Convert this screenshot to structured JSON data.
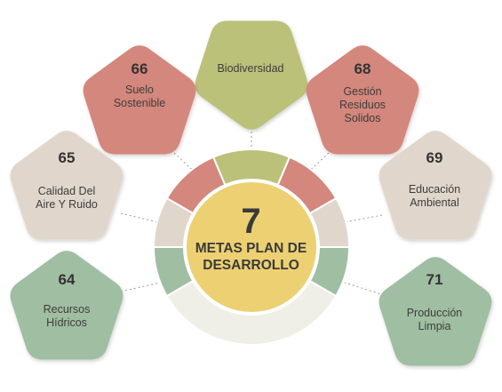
{
  "center": {
    "number": "7",
    "title": "METAS PLAN DE DESARROLLO"
  },
  "colors": {
    "green_light": "#bcc17a",
    "salmon": "#d4877c",
    "beige": "#e0d6cc",
    "sage": "#a0bea2",
    "center": "#ecd072",
    "ring_bottom": "#efefe7",
    "connector": "#9a9a9a"
  },
  "nodes": [
    {
      "id": "biodiversidad",
      "number": "",
      "label": "Biodiversidad",
      "color": "green_light"
    },
    {
      "id": "66",
      "number": "66",
      "label": "Suelo Sostenible",
      "color": "salmon"
    },
    {
      "id": "68",
      "number": "68",
      "label": "Gestión Residuos Solidos",
      "color": "salmon"
    },
    {
      "id": "65",
      "number": "65",
      "label": "Calidad Del Aire Y Ruido",
      "color": "beige"
    },
    {
      "id": "69",
      "number": "69",
      "label": "Educación Ambiental",
      "color": "beige"
    },
    {
      "id": "64",
      "number": "64",
      "label": "Recursos Hídricos",
      "color": "sage"
    },
    {
      "id": "71",
      "number": "71",
      "label": "Producción Limpia",
      "color": "sage"
    }
  ]
}
